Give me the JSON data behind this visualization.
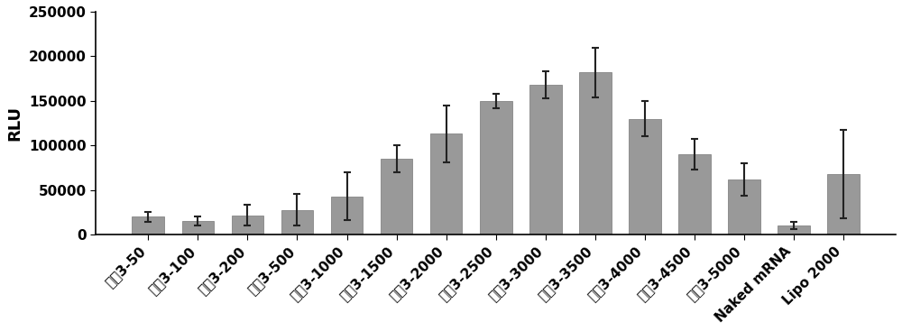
{
  "categories": [
    "处方3-50",
    "处方3-100",
    "处方3-200",
    "处方3-500",
    "处方3-1000",
    "处方3-1500",
    "处方3-2000",
    "处方3-2500",
    "处方3-3000",
    "处方3-3500",
    "处方3-4000",
    "处方3-4500",
    "处方3-5000",
    "Naked mRNA",
    "Lipo 2000"
  ],
  "values": [
    20000,
    15000,
    22000,
    28000,
    43000,
    85000,
    113000,
    150000,
    168000,
    182000,
    130000,
    90000,
    62000,
    10000,
    68000
  ],
  "errors": [
    6000,
    5000,
    12000,
    18000,
    27000,
    15000,
    32000,
    8000,
    15000,
    28000,
    20000,
    17000,
    18000,
    4000,
    50000
  ],
  "bar_color": "#999999",
  "error_color": "#222222",
  "ylabel": "RLU",
  "ylim": [
    0,
    250000
  ],
  "yticks": [
    0,
    50000,
    100000,
    150000,
    200000,
    250000
  ],
  "ytick_labels": [
    "0",
    "50000",
    "100000",
    "150000",
    "200000",
    "250000"
  ],
  "bg_color": "#ffffff",
  "tick_fontsize": 11,
  "ylabel_fontsize": 13
}
